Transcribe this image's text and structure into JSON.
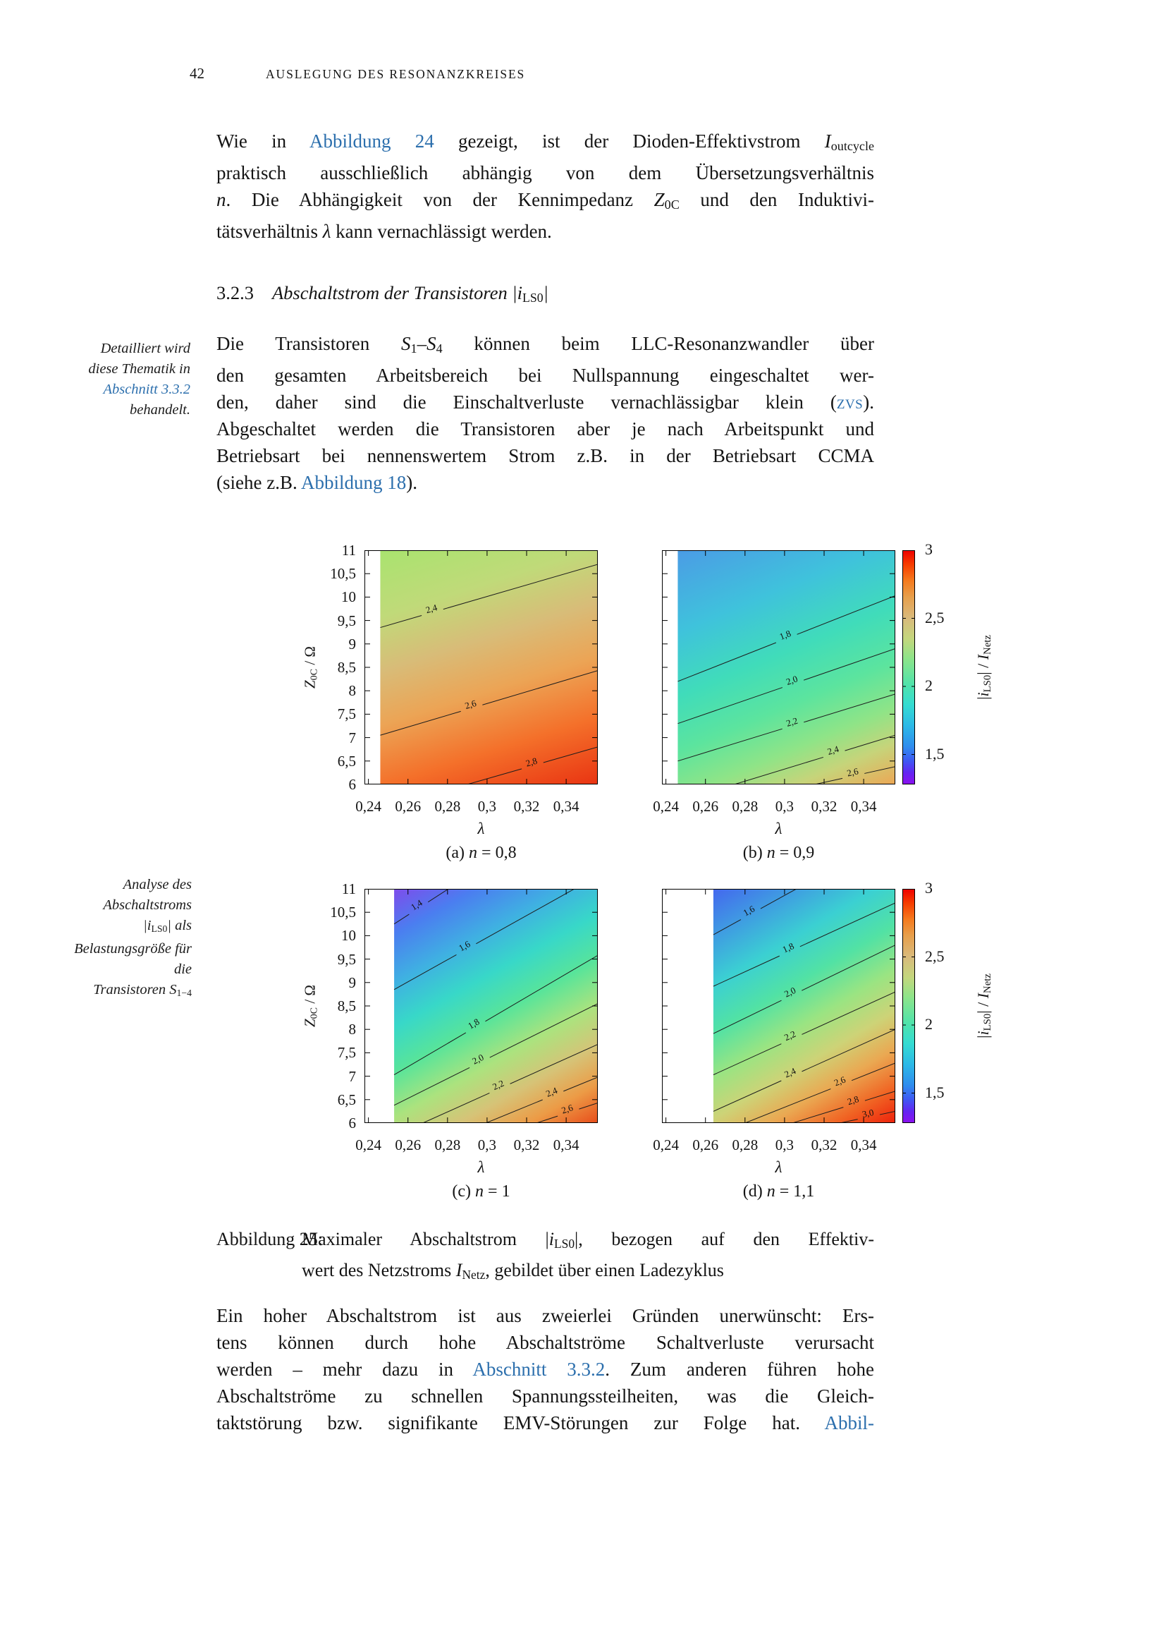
{
  "page": {
    "number": "42",
    "header": "AUSLEGUNG DES RESONANZKREISES"
  },
  "link_color": "#2c6fad",
  "section_heading": {
    "number": "3.2.3",
    "title_runs": [
      {
        "t": "Abschaltstrom der Transistoren |i",
        "s": "i"
      },
      {
        "t": "LS0",
        "s": "sub"
      },
      {
        "t": "|",
        "s": "i"
      }
    ]
  },
  "paragraphs": {
    "p1": {
      "lines": [
        {
          "full": true,
          "runs": [
            {
              "t": "Wie in ",
              "s": "n"
            },
            {
              "t": "Abbildung 24",
              "s": "l"
            },
            {
              "t": " gezeigt, ist der Dioden-Effektivstrom ",
              "s": "n"
            },
            {
              "t": "I",
              "s": "i"
            },
            {
              "t": "outcycle",
              "s": "sub"
            }
          ]
        },
        {
          "full": true,
          "runs": [
            {
              "t": "praktisch ausschließlich abhängig von dem Übersetzungsverhältnis",
              "s": "n"
            }
          ]
        },
        {
          "full": true,
          "runs": [
            {
              "t": "n",
              "s": "i"
            },
            {
              "t": ". Die Abhängigkeit von der Kennimpedanz ",
              "s": "n"
            },
            {
              "t": "Z",
              "s": "i"
            },
            {
              "t": "0C",
              "s": "sub"
            },
            {
              "t": " und den Induktivi-",
              "s": "n"
            }
          ]
        },
        {
          "full": false,
          "runs": [
            {
              "t": "tätsverhältnis ",
              "s": "n"
            },
            {
              "t": "λ",
              "s": "i"
            },
            {
              "t": " kann vernachlässigt werden.",
              "s": "n"
            }
          ]
        }
      ]
    },
    "p2": {
      "lines": [
        {
          "full": true,
          "runs": [
            {
              "t": "Die Transistoren ",
              "s": "n"
            },
            {
              "t": "S",
              "s": "i"
            },
            {
              "t": "1",
              "s": "sub"
            },
            {
              "t": "–",
              "s": "n"
            },
            {
              "t": "S",
              "s": "i"
            },
            {
              "t": "4",
              "s": "sub"
            },
            {
              "t": " können beim LLC-Resonanzwandler über",
              "s": "n"
            }
          ]
        },
        {
          "full": true,
          "runs": [
            {
              "t": "den gesamten Arbeitsbereich bei Nullspannung eingeschaltet wer-",
              "s": "n"
            }
          ]
        },
        {
          "full": true,
          "runs": [
            {
              "t": "den, daher sind die Einschaltverluste vernachlässigbar klein (",
              "s": "n"
            },
            {
              "t": "ZVS",
              "s": "scl"
            },
            {
              "t": ").",
              "s": "n"
            }
          ]
        },
        {
          "full": true,
          "runs": [
            {
              "t": "Abgeschaltet werden die Transistoren aber je nach Arbeitspunkt und",
              "s": "n"
            }
          ]
        },
        {
          "full": true,
          "runs": [
            {
              "t": "Betriebsart bei nennenswertem Strom z.B. in der Betriebsart CCMA",
              "s": "n"
            }
          ]
        },
        {
          "full": false,
          "runs": [
            {
              "t": "(siehe z.B. ",
              "s": "n"
            },
            {
              "t": "Abbildung 18",
              "s": "l"
            },
            {
              "t": ").",
              "s": "n"
            }
          ]
        }
      ]
    },
    "p3": {
      "lines": [
        {
          "full": true,
          "runs": [
            {
              "t": "Ein hoher Abschaltstrom ist aus zweierlei Gründen unerwünscht: Ers-",
              "s": "n"
            }
          ]
        },
        {
          "full": true,
          "runs": [
            {
              "t": "tens können durch hohe Abschaltströme Schaltverluste verursacht",
              "s": "n"
            }
          ]
        },
        {
          "full": true,
          "runs": [
            {
              "t": "werden – mehr dazu in ",
              "s": "n"
            },
            {
              "t": "Abschnitt 3.3.2",
              "s": "l"
            },
            {
              "t": ". Zum anderen führen hohe",
              "s": "n"
            }
          ]
        },
        {
          "full": true,
          "runs": [
            {
              "t": "Abschaltströme zu schnellen Spannungssteilheiten, was die Gleich-",
              "s": "n"
            }
          ]
        },
        {
          "full": true,
          "runs": [
            {
              "t": "taktstörung bzw. signifikante EMV-Störungen zur Folge hat. ",
              "s": "n"
            },
            {
              "t": "Abbil-",
              "s": "l"
            }
          ]
        }
      ]
    }
  },
  "margin_notes": {
    "note1": {
      "lines": [
        {
          "full": false,
          "runs": [
            {
              "t": "Detailliert wird",
              "s": "i"
            }
          ]
        },
        {
          "full": false,
          "runs": [
            {
              "t": "diese Thematik in",
              "s": "i"
            }
          ]
        },
        {
          "full": false,
          "runs": [
            {
              "t": "Abschnitt 3.3.2",
              "s": "il"
            }
          ]
        },
        {
          "full": false,
          "runs": [
            {
              "t": "behandelt.",
              "s": "i"
            }
          ]
        }
      ]
    },
    "note2": {
      "lines": [
        {
          "full": false,
          "runs": [
            {
              "t": "Analyse des",
              "s": "i"
            }
          ]
        },
        {
          "full": false,
          "runs": [
            {
              "t": "Abschaltstroms",
              "s": "i"
            }
          ]
        },
        {
          "full": false,
          "runs": [
            {
              "t": "|i",
              "s": "i"
            },
            {
              "t": "LS0",
              "s": "sub"
            },
            {
              "t": "| als",
              "s": "i"
            }
          ]
        },
        {
          "full": false,
          "runs": [
            {
              "t": "Belastungsgröße für",
              "s": "i"
            }
          ]
        },
        {
          "full": false,
          "runs": [
            {
              "t": "die",
              "s": "i"
            }
          ]
        },
        {
          "full": false,
          "runs": [
            {
              "t": "Transistoren S",
              "s": "i"
            },
            {
              "t": "1−4",
              "s": "sub"
            }
          ]
        }
      ]
    }
  },
  "figure_caption": {
    "label": "Abbildung 25:",
    "lines": [
      {
        "full": true,
        "runs": [
          {
            "t": "Maximaler Abschaltstrom |",
            "s": "n"
          },
          {
            "t": "i",
            "s": "i"
          },
          {
            "t": "LS0",
            "s": "sub"
          },
          {
            "t": "|, bezogen auf den Effektiv-",
            "s": "n"
          }
        ]
      },
      {
        "full": false,
        "runs": [
          {
            "t": "wert des Netzstroms ",
            "s": "n"
          },
          {
            "t": "I",
            "s": "i"
          },
          {
            "t": "Netz",
            "s": "sub"
          },
          {
            "t": ", gebildet über einen Ladezyklus",
            "s": "n"
          }
        ]
      }
    ]
  },
  "chart_data": {
    "type": "heatmap",
    "layout": "2x2 contour maps with shared colorbar per row",
    "x_range": [
      0.238,
      0.356
    ],
    "y_range": [
      6,
      11
    ],
    "grid": false,
    "xlabel_runs": [
      {
        "t": "λ",
        "s": "i"
      }
    ],
    "ylabel_runs": [
      {
        "t": "Z",
        "s": "i"
      },
      {
        "t": "0C",
        "s": "sub"
      },
      {
        "t": " / Ω",
        "s": "n"
      }
    ],
    "colorbar_label_runs": [
      {
        "t": "|",
        "s": "n"
      },
      {
        "t": "i",
        "s": "i"
      },
      {
        "t": "LS0",
        "s": "sub"
      },
      {
        "t": "| / ",
        "s": "n"
      },
      {
        "t": "I",
        "s": "i"
      },
      {
        "t": "Netz",
        "s": "sub"
      }
    ],
    "x_ticks": [
      {
        "v": 0.24,
        "label": "0,24"
      },
      {
        "v": 0.26,
        "label": "0,26"
      },
      {
        "v": 0.28,
        "label": "0,28"
      },
      {
        "v": 0.3,
        "label": "0,3"
      },
      {
        "v": 0.32,
        "label": "0,32"
      },
      {
        "v": 0.34,
        "label": "0,34"
      }
    ],
    "y_ticks": [
      {
        "v": 6,
        "label": "6"
      },
      {
        "v": 6.5,
        "label": "6,5"
      },
      {
        "v": 7,
        "label": "7"
      },
      {
        "v": 7.5,
        "label": "7,5"
      },
      {
        "v": 8,
        "label": "8"
      },
      {
        "v": 8.5,
        "label": "8,5"
      },
      {
        "v": 9,
        "label": "9"
      },
      {
        "v": 9.5,
        "label": "9,5"
      },
      {
        "v": 10,
        "label": "10"
      },
      {
        "v": 10.5,
        "label": "10,5"
      },
      {
        "v": 11,
        "label": "11"
      }
    ],
    "colorbar": {
      "range": [
        1.28,
        3
      ],
      "ticks": [
        {
          "v": 3,
          "label": "3"
        },
        {
          "v": 2.5,
          "label": "2,5"
        },
        {
          "v": 2,
          "label": "2"
        },
        {
          "v": 1.5,
          "label": "1,5"
        }
      ],
      "stops": [
        [
          0,
          "#ef0000"
        ],
        [
          0.06,
          "#f63c00"
        ],
        [
          0.13,
          "#f57a1e"
        ],
        [
          0.2,
          "#e79f4c"
        ],
        [
          0.29,
          "#d9ba7c"
        ],
        [
          0.38,
          "#c3d77d"
        ],
        [
          0.46,
          "#8fe489"
        ],
        [
          0.575,
          "#4fe3ab"
        ],
        [
          0.66,
          "#35dcd2"
        ],
        [
          0.75,
          "#2cb9e7"
        ],
        [
          0.84,
          "#2f8cee"
        ],
        [
          0.9,
          "#3f57f3"
        ],
        [
          0.95,
          "#6325f1"
        ],
        [
          1,
          "#8d10ef"
        ]
      ]
    },
    "subplots": [
      {
        "id": "a",
        "caption_runs": [
          {
            "t": "(a) ",
            "s": "n"
          },
          {
            "t": "n",
            "s": "i"
          },
          {
            "t": " = 0,8",
            "s": "n"
          }
        ],
        "blank_until": 0.246,
        "gradient": {
          "vec": [
            0.35,
            1.19
          ],
          "stops": [
            [
              0,
              "#a9e36f"
            ],
            [
              0.22,
              "#c0da79"
            ],
            [
              0.4,
              "#d8bc78"
            ],
            [
              0.58,
              "#eca455"
            ],
            [
              0.78,
              "#f4702a"
            ],
            [
              1,
              "#e93412"
            ]
          ]
        },
        "contours": [
          {
            "label": "2,4",
            "x0": 0.246,
            "y0": 9.35,
            "x1": 0.356,
            "y1": 10.7,
            "lt": 0.24
          },
          {
            "label": "2,6",
            "x0": 0.246,
            "y0": 7.05,
            "x1": 0.356,
            "y1": 8.43,
            "lt": 0.42
          },
          {
            "label": "2,8",
            "x0": 0.29,
            "y0": 6.0,
            "x1": 0.356,
            "y1": 6.8,
            "lt": 0.5
          }
        ]
      },
      {
        "id": "b",
        "caption_runs": [
          {
            "t": "(b) ",
            "s": "n"
          },
          {
            "t": "n",
            "s": "i"
          },
          {
            "t": " = 0,9",
            "s": "n"
          }
        ],
        "blank_until": 0.246,
        "gradient": {
          "vec": [
            0.47,
            1.21
          ],
          "stops": [
            [
              0,
              "#4b9ce5"
            ],
            [
              0.25,
              "#3fc2dc"
            ],
            [
              0.45,
              "#40dcba"
            ],
            [
              0.62,
              "#5ce49e"
            ],
            [
              0.76,
              "#8fe487"
            ],
            [
              0.87,
              "#c6d47a"
            ],
            [
              1,
              "#eda654"
            ]
          ]
        },
        "contours": [
          {
            "label": "1,8",
            "x0": 0.246,
            "y0": 8.2,
            "x1": 0.356,
            "y1": 10.03,
            "lt": 0.5
          },
          {
            "label": "2,0",
            "x0": 0.246,
            "y0": 7.3,
            "x1": 0.356,
            "y1": 8.9,
            "lt": 0.53
          },
          {
            "label": "2,2",
            "x0": 0.246,
            "y0": 6.5,
            "x1": 0.356,
            "y1": 7.93,
            "lt": 0.53
          },
          {
            "label": "2,4",
            "x0": 0.2746,
            "y0": 6.0,
            "x1": 0.356,
            "y1": 7.05,
            "lt": 0.62
          },
          {
            "label": "2,6",
            "x0": 0.3153,
            "y0": 6.0,
            "x1": 0.356,
            "y1": 6.38,
            "lt": 0.48
          }
        ]
      },
      {
        "id": "c",
        "caption_runs": [
          {
            "t": "(c) ",
            "s": "n"
          },
          {
            "t": "n",
            "s": "i"
          },
          {
            "t": " = 1",
            "s": "n"
          }
        ],
        "blank_until": 0.253,
        "gradient": {
          "vec": [
            0.58,
            1.2
          ],
          "stops": [
            [
              0,
              "#7e4ceb"
            ],
            [
              0.13,
              "#4b7df0"
            ],
            [
              0.27,
              "#3fb0e2"
            ],
            [
              0.4,
              "#38d8c8"
            ],
            [
              0.53,
              "#58e49a"
            ],
            [
              0.66,
              "#abe37e"
            ],
            [
              0.78,
              "#d6c377"
            ],
            [
              0.89,
              "#ec9b46"
            ],
            [
              1,
              "#e84e1b"
            ]
          ]
        },
        "contours": [
          {
            "label": "1,4",
            "x0": 0.253,
            "y0": 10.25,
            "x1": 0.2805,
            "y1": 11.0,
            "lt": 0.45
          },
          {
            "label": "1,6",
            "x0": 0.253,
            "y0": 8.85,
            "x1": 0.3442,
            "y1": 11.0,
            "lt": 0.4
          },
          {
            "label": "1,8",
            "x0": 0.253,
            "y0": 7.03,
            "x1": 0.356,
            "y1": 9.58,
            "lt": 0.4
          },
          {
            "label": "2,0",
            "x0": 0.253,
            "y0": 6.38,
            "x1": 0.356,
            "y1": 8.55,
            "lt": 0.42
          },
          {
            "label": "2,2",
            "x0": 0.2675,
            "y0": 6.0,
            "x1": 0.356,
            "y1": 7.68,
            "lt": 0.44
          },
          {
            "label": "2,4",
            "x0": 0.2994,
            "y0": 6.0,
            "x1": 0.356,
            "y1": 6.98,
            "lt": 0.6
          },
          {
            "label": "2,6",
            "x0": 0.325,
            "y0": 6.0,
            "x1": 0.356,
            "y1": 6.43,
            "lt": 0.52
          }
        ]
      },
      {
        "id": "d",
        "caption_runs": [
          {
            "t": "(d) ",
            "s": "n"
          },
          {
            "t": "n",
            "s": "i"
          },
          {
            "t": " = 1,1",
            "s": "n"
          }
        ],
        "blank_until": 0.264,
        "gradient": {
          "vec": [
            0.56,
            1.21
          ],
          "stops": [
            [
              0,
              "#4467ee"
            ],
            [
              0.14,
              "#3f9ce2"
            ],
            [
              0.28,
              "#3bd0d2"
            ],
            [
              0.42,
              "#52e2a4"
            ],
            [
              0.55,
              "#9ae482"
            ],
            [
              0.67,
              "#cdd377"
            ],
            [
              0.78,
              "#eaa852"
            ],
            [
              0.89,
              "#f06524"
            ],
            [
              1,
              "#ee1e0a"
            ]
          ]
        },
        "contours": [
          {
            "label": "1,6",
            "x0": 0.264,
            "y0": 10.02,
            "x1": 0.306,
            "y1": 11.0,
            "lt": 0.45
          },
          {
            "label": "1,8",
            "x0": 0.264,
            "y0": 8.92,
            "x1": 0.356,
            "y1": 10.7,
            "lt": 0.42
          },
          {
            "label": "2,0",
            "x0": 0.264,
            "y0": 7.91,
            "x1": 0.356,
            "y1": 9.8,
            "lt": 0.43
          },
          {
            "label": "2,2",
            "x0": 0.264,
            "y0": 7.03,
            "x1": 0.356,
            "y1": 8.8,
            "lt": 0.43
          },
          {
            "label": "2,4",
            "x0": 0.264,
            "y0": 6.25,
            "x1": 0.356,
            "y1": 8.0,
            "lt": 0.43
          },
          {
            "label": "2,6",
            "x0": 0.28,
            "y0": 6.0,
            "x1": 0.356,
            "y1": 7.28,
            "lt": 0.64
          },
          {
            "label": "2,8",
            "x0": 0.304,
            "y0": 6.0,
            "x1": 0.356,
            "y1": 6.68,
            "lt": 0.6
          },
          {
            "label": "3,0",
            "x0": 0.328,
            "y0": 6.0,
            "x1": 0.356,
            "y1": 6.25,
            "lt": 0.52
          }
        ]
      }
    ]
  }
}
